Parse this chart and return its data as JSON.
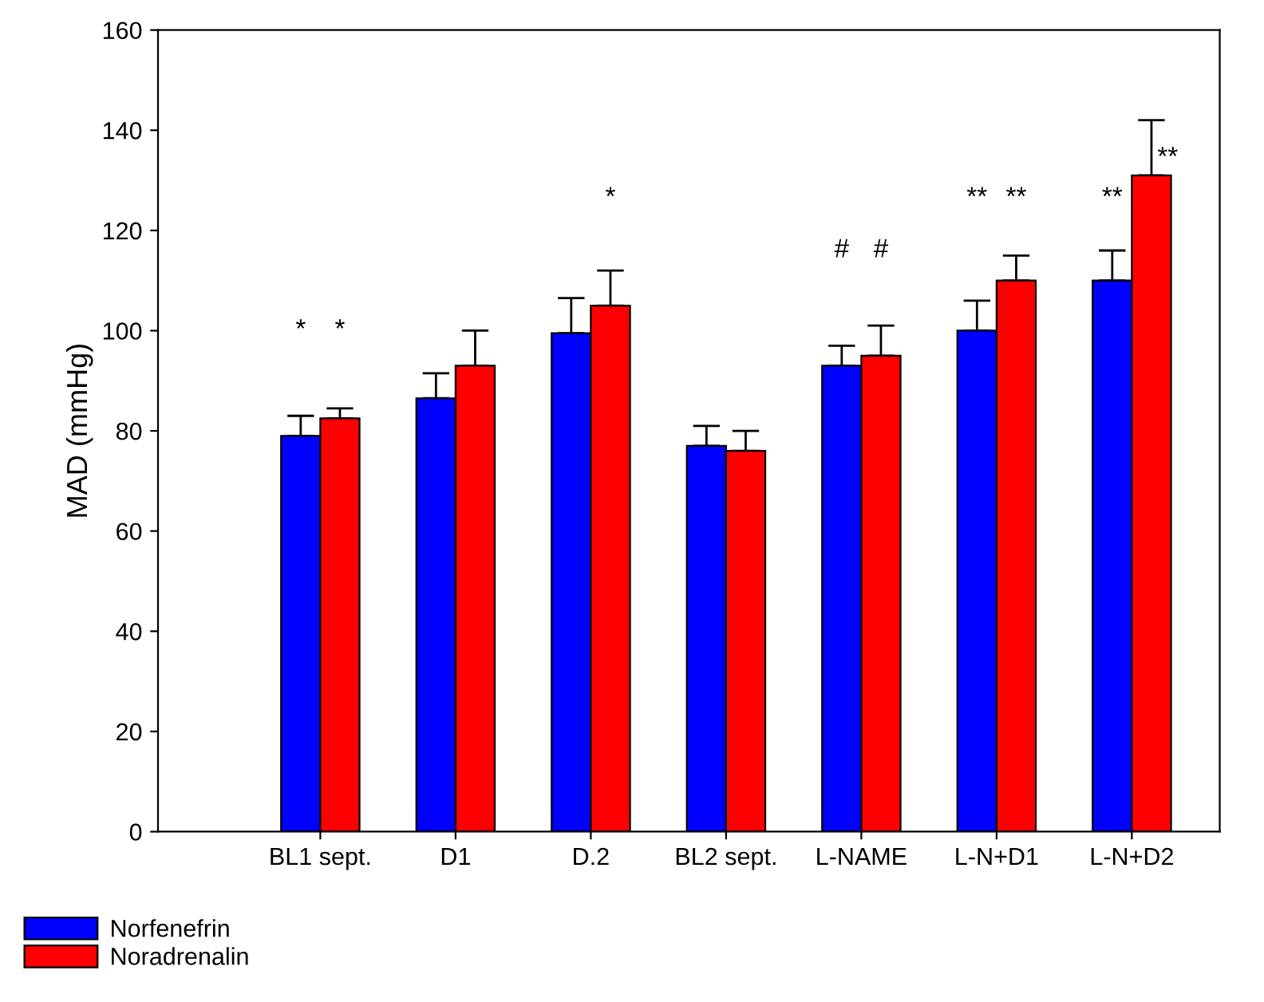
{
  "chart_data": {
    "type": "bar",
    "ylabel": "MAD (mmHg)",
    "categories": [
      "BL1 sept.",
      "D1",
      "D.2",
      "BL2 sept.",
      "L-NAME",
      "L-N+D1",
      "L-N+D2"
    ],
    "series": [
      {
        "name": "Norfenefrin",
        "color": "#0000ff",
        "values": [
          79,
          86.5,
          99.5,
          77,
          93,
          100,
          110
        ],
        "errors": [
          [
            79,
            83
          ],
          [
            86.5,
            91.5
          ],
          [
            99.5,
            106.5
          ],
          [
            77,
            81
          ],
          [
            93,
            97
          ],
          [
            100,
            106
          ],
          [
            110,
            116
          ]
        ]
      },
      {
        "name": "Noradrenalin",
        "color": "#ff0000",
        "values": [
          82.5,
          93,
          105,
          76,
          95,
          110,
          131
        ],
        "errors": [
          [
            82.5,
            84.5
          ],
          [
            93,
            100
          ],
          [
            105,
            112
          ],
          [
            76,
            80
          ],
          [
            95,
            101
          ],
          [
            110,
            115
          ],
          [
            131,
            142
          ]
        ]
      }
    ],
    "annotations": [
      "*",
      "*",
      "*",
      "#",
      "#",
      "**",
      "**",
      "**",
      "**"
    ],
    "ylim": [
      0,
      160
    ],
    "yticks": [
      0,
      20,
      40,
      60,
      80,
      100,
      120,
      140,
      160
    ],
    "grid": false,
    "legend": "bottom left"
  }
}
